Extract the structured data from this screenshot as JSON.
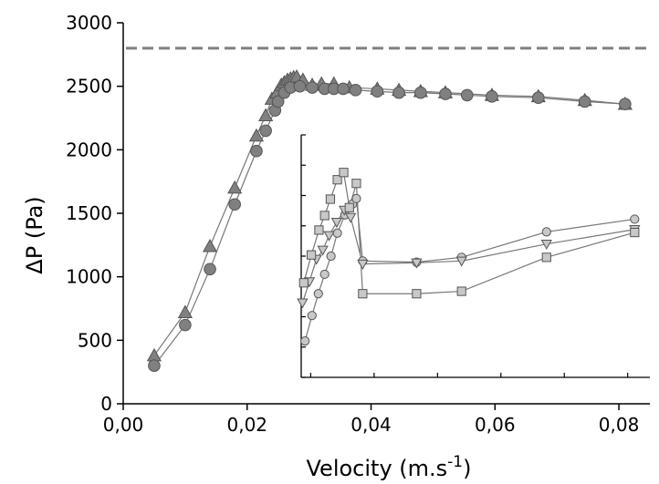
{
  "chart_data": [
    {
      "type": "scatter",
      "xlabel": "Velocity (m.s",
      "xlabel_superscript": "-1",
      "xlabel_close": ")",
      "ylabel": "ΔP (Pa)",
      "xlim": [
        0,
        0.085
      ],
      "ylim": [
        0,
        3000
      ],
      "x_ticks": [
        "0,00",
        "0,02",
        "0,04",
        "0,06",
        "0,08"
      ],
      "x_tick_values": [
        0,
        0.02,
        0.04,
        0.06,
        0.08
      ],
      "y_ticks": [
        "0",
        "500",
        "1000",
        "1500",
        "2000",
        "2500",
        "3000"
      ],
      "y_tick_values": [
        0,
        500,
        1000,
        1500,
        2000,
        2500,
        3000
      ],
      "reference_line": {
        "y": 2800,
        "style": "dashed",
        "color": "#808080"
      },
      "series": [
        {
          "marker": "triangle-up",
          "color": "#808080",
          "x": [
            0.005,
            0.01,
            0.014,
            0.018,
            0.0215,
            0.023,
            0.024,
            0.0248,
            0.0255,
            0.026,
            0.0265,
            0.027,
            0.0275,
            0.028,
            0.029,
            0.0305,
            0.032,
            0.034,
            0.0365,
            0.041,
            0.0445,
            0.048,
            0.052,
            0.0595,
            0.067,
            0.0745,
            0.081
          ],
          "y": [
            380,
            720,
            1240,
            1700,
            2110,
            2270,
            2400,
            2450,
            2510,
            2530,
            2550,
            2560,
            2570,
            2575,
            2550,
            2510,
            2520,
            2520,
            2490,
            2480,
            2470,
            2460,
            2450,
            2430,
            2420,
            2390,
            2360
          ]
        },
        {
          "marker": "circle",
          "color": "#808080",
          "x": [
            0.005,
            0.01,
            0.014,
            0.018,
            0.0215,
            0.023,
            0.0245,
            0.025,
            0.026,
            0.027,
            0.0285,
            0.0305,
            0.0325,
            0.034,
            0.0355,
            0.0375,
            0.041,
            0.0445,
            0.048,
            0.052,
            0.0555,
            0.0595,
            0.067,
            0.0745,
            0.081
          ],
          "y": [
            300,
            620,
            1060,
            1570,
            1990,
            2150,
            2310,
            2380,
            2450,
            2490,
            2500,
            2490,
            2480,
            2480,
            2480,
            2470,
            2460,
            2450,
            2450,
            2440,
            2430,
            2420,
            2410,
            2380,
            2360
          ]
        }
      ]
    },
    {
      "type": "scatter",
      "inset": true,
      "xlim": [
        0.0285,
        0.0835
      ],
      "ylim": [
        0,
        2000
      ],
      "x_tick_values": [
        0.03,
        0.04,
        0.05,
        0.06,
        0.07,
        0.08
      ],
      "y_tick_values": [
        0,
        250,
        500,
        750,
        1000,
        1250,
        1500,
        1750,
        2000
      ],
      "series": [
        {
          "marker": "circle",
          "color": "#c8c8c8",
          "x": [
            0.0291,
            0.0302,
            0.0312,
            0.0322,
            0.0332,
            0.0342,
            0.0354,
            0.0366,
            0.0372,
            0.0382,
            0.0467,
            0.0538,
            0.0672,
            0.0811
          ],
          "y": [
            300,
            510,
            690,
            850,
            1000,
            1190,
            1340,
            1430,
            1475,
            960,
            950,
            990,
            1200,
            1305
          ]
        },
        {
          "marker": "triangle-down",
          "color": "#c8c8c8",
          "x": [
            0.0287,
            0.0298,
            0.0309,
            0.0319,
            0.0329,
            0.0341,
            0.0353,
            0.0363,
            0.0382,
            0.0467,
            0.0538,
            0.0672,
            0.0811
          ],
          "y": [
            615,
            790,
            975,
            1050,
            1170,
            1280,
            1380,
            1320,
            935,
            945,
            960,
            1100,
            1220
          ]
        },
        {
          "marker": "square",
          "color": "#c8c8c8",
          "x": [
            0.0289,
            0.0301,
            0.0313,
            0.0322,
            0.0331,
            0.0342,
            0.0352,
            0.0361,
            0.0372,
            0.0382,
            0.0467,
            0.0538,
            0.0672,
            0.0811
          ],
          "y": [
            780,
            1010,
            1215,
            1335,
            1470,
            1630,
            1690,
            1400,
            1600,
            690,
            690,
            710,
            990,
            1195
          ]
        }
      ]
    }
  ]
}
